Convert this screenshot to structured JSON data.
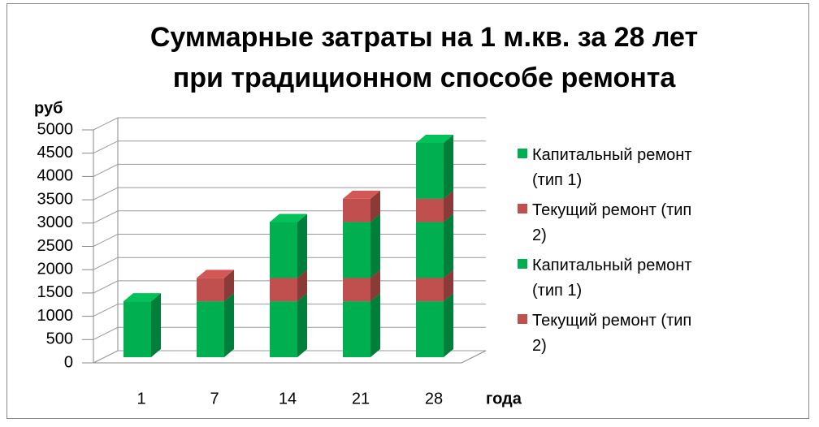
{
  "chart_data": {
    "type": "bar3d_stacked",
    "title": "Суммарные затраты на 1 м.кв. за 28 лет при традиционном способе ремонта",
    "title_lines": [
      "Суммарные затраты на 1 м.кв. за 28 лет",
      "при традиционном способе ремонта"
    ],
    "y_label": "руб",
    "x_label": "года",
    "categories": [
      "1",
      "7",
      "14",
      "21",
      "28"
    ],
    "series": [
      {
        "name": "Капитальный ремонт (тип 1)",
        "color": "#00b050",
        "values": [
          1200,
          1200,
          1200,
          1200,
          1200
        ]
      },
      {
        "name": "Текущий ремонт (тип 2)",
        "color": "#c0504d",
        "values": [
          null,
          500,
          500,
          500,
          500
        ]
      },
      {
        "name": "Капитальный ремонт (тип 1)",
        "color": "#00b050",
        "values": [
          null,
          null,
          1200,
          1200,
          1200
        ]
      },
      {
        "name": "Текущий ремонт (тип 2)",
        "color": "#c0504d",
        "values": [
          null,
          null,
          null,
          500,
          500
        ]
      },
      {
        "color": "#00b050",
        "values": [
          null,
          null,
          null,
          null,
          1200
        ]
      }
    ],
    "ylim": [
      0,
      5000
    ],
    "yticks": [
      0,
      500,
      1000,
      1500,
      2000,
      2500,
      3000,
      3500,
      4000,
      4500,
      5000
    ],
    "grid": true,
    "legend": "right"
  }
}
